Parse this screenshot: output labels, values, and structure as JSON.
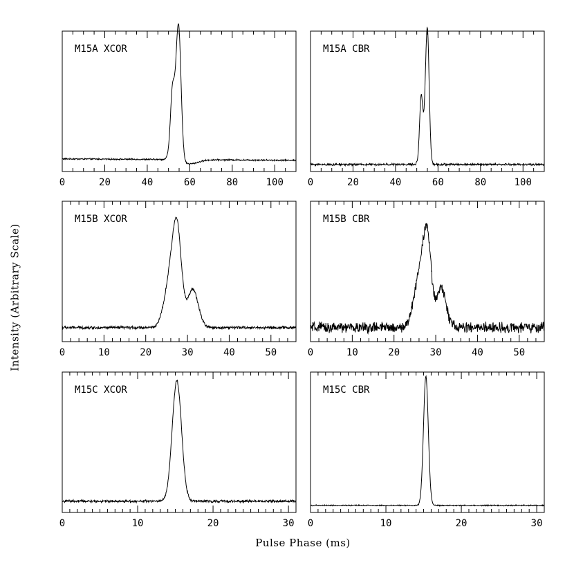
{
  "figure": {
    "xlabel": "Pulse Phase (ms)",
    "ylabel": "Intensity (Arbitrary Scale)"
  },
  "chart_data": [
    {
      "type": "line",
      "label": "M15A XCOR",
      "xlim": [
        0,
        110
      ],
      "ylim": [
        0,
        1
      ],
      "major_step": 20,
      "minor_step": 5,
      "tick_labels": [
        "0",
        "20",
        "40",
        "60",
        "80",
        "100"
      ],
      "baseline": 0.09,
      "baseline_left": 0.09,
      "baseline_right": 0.08,
      "noise": 0.004,
      "components": [
        {
          "center": 54.8,
          "width": 1.15,
          "amp": 0.86
        },
        {
          "center": 51.8,
          "width": 0.9,
          "amp": 0.3
        },
        {
          "center": 52.8,
          "width": 1.6,
          "amp": 0.25
        }
      ],
      "dip": {
        "center": 60,
        "width": 4,
        "depth": 0.03
      }
    },
    {
      "type": "line",
      "label": "M15A CBR",
      "xlim": [
        0,
        110
      ],
      "ylim": [
        0,
        1
      ],
      "major_step": 20,
      "minor_step": 5,
      "tick_labels": [
        "0",
        "20",
        "40",
        "60",
        "80",
        "100"
      ],
      "baseline": 0.05,
      "noise": 0.006,
      "components": [
        {
          "center": 55.0,
          "width": 0.85,
          "amp": 0.9
        },
        {
          "center": 52.0,
          "width": 0.7,
          "amp": 0.36
        },
        {
          "center": 53.2,
          "width": 1.3,
          "amp": 0.2
        }
      ]
    },
    {
      "type": "line",
      "label": "M15B XCOR",
      "xlim": [
        0,
        56
      ],
      "ylim": [
        0,
        1
      ],
      "major_step": 10,
      "minor_step": 2,
      "tick_labels": [
        "0",
        "10",
        "20",
        "30",
        "40",
        "50"
      ],
      "baseline": 0.1,
      "noise": 0.008,
      "components": [
        {
          "center": 27.6,
          "width": 1.0,
          "amp": 0.5
        },
        {
          "center": 26.2,
          "width": 1.5,
          "amp": 0.4
        },
        {
          "center": 31.3,
          "width": 1.3,
          "amp": 0.27
        }
      ]
    },
    {
      "type": "line",
      "label": "M15B CBR",
      "xlim": [
        0,
        56
      ],
      "ylim": [
        0,
        1
      ],
      "major_step": 10,
      "minor_step": 2,
      "tick_labels": [
        "0",
        "10",
        "20",
        "30",
        "40",
        "50"
      ],
      "baseline": 0.1,
      "noise": 0.03,
      "components": [
        {
          "center": 28.0,
          "width": 0.9,
          "amp": 0.52
        },
        {
          "center": 26.3,
          "width": 1.4,
          "amp": 0.4
        },
        {
          "center": 31.3,
          "width": 1.2,
          "amp": 0.28
        }
      ]
    },
    {
      "type": "line",
      "label": "M15C XCOR",
      "xlim": [
        0,
        31
      ],
      "ylim": [
        0,
        1
      ],
      "major_step": 10,
      "minor_step": 1,
      "tick_labels": [
        "0",
        "10",
        "20",
        "30"
      ],
      "baseline": 0.08,
      "noise": 0.007,
      "components": [
        {
          "center": 15.2,
          "width": 0.62,
          "amp": 0.86
        }
      ]
    },
    {
      "type": "line",
      "label": "M15C CBR",
      "xlim": [
        0,
        31
      ],
      "ylim": [
        0,
        1
      ],
      "major_step": 10,
      "minor_step": 1,
      "tick_labels": [
        "0",
        "10",
        "20",
        "30"
      ],
      "baseline": 0.05,
      "noise": 0.003,
      "components": [
        {
          "center": 15.3,
          "width": 0.32,
          "amp": 0.92
        }
      ]
    }
  ]
}
